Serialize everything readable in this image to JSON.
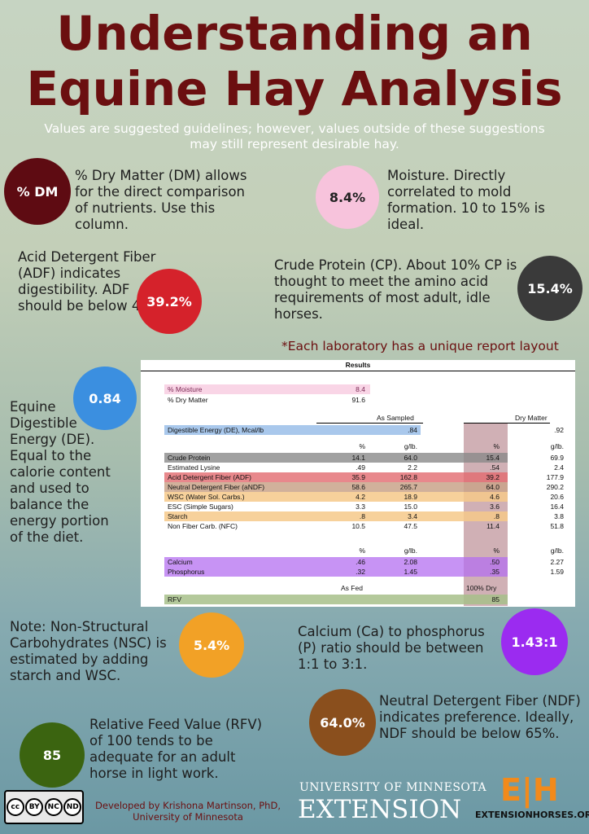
{
  "title_line1": "Understanding an",
  "title_line2": "Equine Hay Analysis",
  "subtitle": "Values are suggested guidelines; however, values outside of these suggestions may still represent desirable hay.",
  "colors": {
    "title": "#6b0f10",
    "dm": "#5e0b12",
    "moisture": "#f7c3dc",
    "adf": "#d5222b",
    "cp": "#3a3a3a",
    "de": "#3b8fe0",
    "nsc": "#f2a126",
    "ca": "#9b2bf0",
    "ndf": "#8a4f1d",
    "rfv": "#3b6410"
  },
  "badges": {
    "dm": "% DM",
    "moisture": "8.4%",
    "adf": "39.2%",
    "cp": "15.4%",
    "de": "0.84",
    "nsc": "5.4%",
    "ca": "1.43:1",
    "ndf": "64.0%",
    "rfv": "85"
  },
  "texts": {
    "dm": "% Dry Matter (DM) allows for the direct comparison of nutrients. Use this column.",
    "moisture": "Moisture. Directly correlated to mold formation. 10 to 15% is ideal.",
    "adf": "Acid Detergent Fiber (ADF) indicates digestibility. ADF should be below 45%.",
    "cp": "Crude Protein (CP). About 10% CP is thought to meet the amino acid requirements of most adult, idle horses.",
    "de": "Equine Digestible Energy (DE). Equal to the calorie content and used to balance the energy portion of the diet.",
    "nsc": "Note: Non-Structural Carbohydrates (NSC) is estimated by adding starch and WSC.",
    "ca": "Calcium (Ca) to phosphorus (P) ratio should be between 1:1 to 3:1.",
    "ndf": "Neutral Detergent Fiber (NDF) indicates preference. Ideally, NDF should be below 65%.",
    "rfv": "Relative Feed Value (RFV) of 100 tends to be adequate for an adult horse in light work."
  },
  "lab_note": "*Each laboratory has a unique report layout",
  "report": {
    "title": "Results",
    "moisture_label": "% Moisture",
    "moisture_value": "8.4",
    "drymatter_label": "% Dry Matter",
    "drymatter_value": "91.6",
    "as_sampled": "As Sampled",
    "dry_matter": "Dry Matter",
    "de_label": "Digestible Energy (DE), Mcal/lb",
    "de_as": ".84",
    "de_dm": ".92",
    "hdr_pct": "%",
    "hdr_glb": "g/lb.",
    "rows": [
      {
        "label": "Crude Protein",
        "pct": "14.1",
        "glb": "64.0",
        "dpct": "15.4",
        "dglb": "69.9"
      },
      {
        "label": "Estimated Lysine",
        "pct": ".49",
        "glb": "2.2",
        "dpct": ".54",
        "dglb": "2.4"
      },
      {
        "label": "Acid Detergent Fiber (ADF)",
        "pct": "35.9",
        "glb": "162.8",
        "dpct": "39.2",
        "dglb": "177.9"
      },
      {
        "label": "Neutral Detergent Fiber (aNDF)",
        "pct": "58.6",
        "glb": "265.7",
        "dpct": "64.0",
        "dglb": "290.2"
      },
      {
        "label": "WSC (Water Sol. Carbs.)",
        "pct": "4.2",
        "glb": "18.9",
        "dpct": "4.6",
        "dglb": "20.6"
      },
      {
        "label": "ESC (Simple Sugars)",
        "pct": "3.3",
        "glb": "15.0",
        "dpct": "3.6",
        "dglb": "16.4"
      },
      {
        "label": "Starch",
        "pct": ".8",
        "glb": "3.4",
        "dpct": ".8",
        "dglb": "3.8"
      },
      {
        "label": "Non Fiber Carb. (NFC)",
        "pct": "10.5",
        "glb": "47.5",
        "dpct": "11.4",
        "dglb": "51.8"
      }
    ],
    "hdr2_pct": "%",
    "hdr2_glb": "g/lb.",
    "hdr2_dpct": "%",
    "hdr2_dglb": "g/lb.",
    "minerals": [
      {
        "label": "Calcium",
        "pct": ".46",
        "glb": "2.08",
        "dpct": ".50",
        "dglb": "2.27"
      },
      {
        "label": "Phosphorus",
        "pct": ".32",
        "glb": "1.45",
        "dpct": ".35",
        "dglb": "1.59"
      }
    ],
    "as_fed": "As Fed",
    "dry100": "100% Dry",
    "rfv_label": "RFV",
    "rfv_value": "85"
  },
  "footer": {
    "developed1": "Developed by Krishona Martinson, PhD,",
    "developed2": "University of Minnesota",
    "univ": "UNIVERSITY OF MINNESOTA",
    "extension": "EXTENSION",
    "eh_logo": "E|H",
    "eh_site": "EXTENSIONHORSES.ORG",
    "cc": [
      "cc",
      "BY",
      "NC",
      "ND"
    ]
  }
}
